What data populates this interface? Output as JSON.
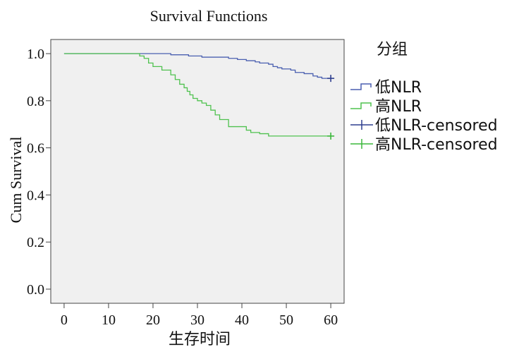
{
  "chart_data": {
    "type": "line",
    "subtype": "kaplan-meier",
    "title": "Survival Functions",
    "xlabel": "生存时间",
    "ylabel": "Cum Survival",
    "xlim": [
      -3,
      63
    ],
    "ylim": [
      -0.06,
      1.06
    ],
    "xticks": [
      0,
      10,
      20,
      30,
      40,
      50,
      60
    ],
    "yticks": [
      0.0,
      0.2,
      0.4,
      0.6,
      0.8,
      1.0
    ],
    "ytick_labels": [
      "0.0",
      "0.2",
      "0.4",
      "0.6",
      "0.8",
      "1.0"
    ],
    "grid": false,
    "plot_background": "#f0f0f0",
    "legend": {
      "title": "分组",
      "placement": "right",
      "entries": [
        {
          "label": "低NLR",
          "marker": "step",
          "color": "#4a5fb0"
        },
        {
          "label": "高NLR",
          "marker": "step",
          "color": "#4fc24f"
        },
        {
          "label": "低NLR-censored",
          "marker": "plus",
          "color": "#2f3f8f"
        },
        {
          "label": "高NLR-censored",
          "marker": "plus",
          "color": "#3cb83c"
        }
      ]
    },
    "series": [
      {
        "name": "低NLR",
        "color": "#4a5fb0",
        "steps": [
          [
            0,
            1.0
          ],
          [
            24,
            0.995
          ],
          [
            28,
            0.99
          ],
          [
            31,
            0.985
          ],
          [
            37,
            0.98
          ],
          [
            39,
            0.975
          ],
          [
            41,
            0.97
          ],
          [
            43,
            0.965
          ],
          [
            44,
            0.96
          ],
          [
            46,
            0.955
          ],
          [
            47,
            0.945
          ],
          [
            48,
            0.94
          ],
          [
            49,
            0.935
          ],
          [
            51,
            0.93
          ],
          [
            52,
            0.92
          ],
          [
            54,
            0.915
          ],
          [
            56,
            0.905
          ],
          [
            57,
            0.9
          ],
          [
            58,
            0.895
          ],
          [
            60,
            0.895
          ]
        ],
        "censored": [
          [
            60,
            0.895
          ]
        ]
      },
      {
        "name": "高NLR",
        "color": "#4fc24f",
        "steps": [
          [
            0,
            1.0
          ],
          [
            17,
            0.99
          ],
          [
            18,
            0.98
          ],
          [
            19,
            0.96
          ],
          [
            20,
            0.945
          ],
          [
            22,
            0.93
          ],
          [
            24,
            0.91
          ],
          [
            25,
            0.89
          ],
          [
            26,
            0.87
          ],
          [
            27,
            0.855
          ],
          [
            27.7,
            0.84
          ],
          [
            28.3,
            0.825
          ],
          [
            29,
            0.81
          ],
          [
            30,
            0.8
          ],
          [
            31,
            0.79
          ],
          [
            32,
            0.78
          ],
          [
            33,
            0.76
          ],
          [
            34,
            0.74
          ],
          [
            35,
            0.72
          ],
          [
            37,
            0.69
          ],
          [
            41,
            0.675
          ],
          [
            42,
            0.665
          ],
          [
            44,
            0.66
          ],
          [
            46,
            0.65
          ],
          [
            60,
            0.65
          ]
        ],
        "censored": [
          [
            60,
            0.65
          ]
        ]
      }
    ]
  }
}
